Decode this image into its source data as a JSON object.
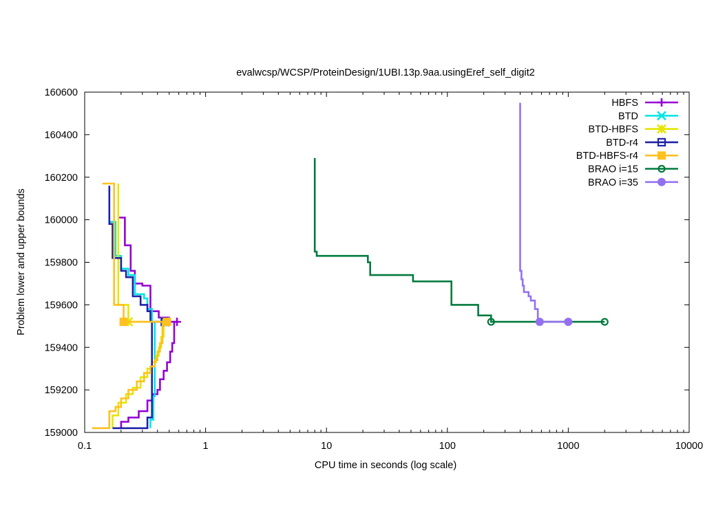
{
  "chart_data": {
    "type": "line",
    "title": "evalwcsp/WCSP/ProteinDesign/1UBI.13p.9aa.usingEref_self_digit2",
    "xlabel": "CPU time in seconds (log scale)",
    "ylabel": "Problem lower and upper bounds",
    "x_scale": "log",
    "xlim": [
      0.1,
      10000
    ],
    "ylim": [
      159000,
      160600
    ],
    "grid": false,
    "legend_position": "top-right",
    "x_ticks": [
      {
        "value": 0.1,
        "label": "0.1"
      },
      {
        "value": 1,
        "label": "1"
      },
      {
        "value": 10,
        "label": "10"
      },
      {
        "value": 100,
        "label": "100"
      },
      {
        "value": 1000,
        "label": "1000"
      },
      {
        "value": 10000,
        "label": "10000"
      }
    ],
    "y_ticks": [
      {
        "value": 159000,
        "label": "159000"
      },
      {
        "value": 159200,
        "label": "159200"
      },
      {
        "value": 159400,
        "label": "159400"
      },
      {
        "value": 159600,
        "label": "159600"
      },
      {
        "value": 159800,
        "label": "159800"
      },
      {
        "value": 160000,
        "label": "160000"
      },
      {
        "value": 160200,
        "label": "160200"
      },
      {
        "value": 160400,
        "label": "160400"
      },
      {
        "value": 160600,
        "label": "160600"
      }
    ],
    "series": [
      {
        "name": "HBFS",
        "color": "#9400d3",
        "marker": "plus",
        "upper": [
          [
            0.19,
            160010
          ],
          [
            0.215,
            160010
          ],
          [
            0.215,
            159880
          ],
          [
            0.24,
            159880
          ],
          [
            0.24,
            159760
          ],
          [
            0.26,
            159760
          ],
          [
            0.26,
            159700
          ],
          [
            0.3,
            159700
          ],
          [
            0.3,
            159690
          ],
          [
            0.35,
            159690
          ],
          [
            0.35,
            159570
          ],
          [
            0.41,
            159570
          ],
          [
            0.41,
            159540
          ],
          [
            0.5,
            159540
          ],
          [
            0.5,
            159520
          ],
          [
            0.58,
            159520
          ]
        ],
        "lower": [
          [
            0.2,
            159020
          ],
          [
            0.2,
            159050
          ],
          [
            0.23,
            159050
          ],
          [
            0.23,
            159070
          ],
          [
            0.28,
            159070
          ],
          [
            0.28,
            159100
          ],
          [
            0.33,
            159100
          ],
          [
            0.33,
            159150
          ],
          [
            0.37,
            159150
          ],
          [
            0.37,
            159180
          ],
          [
            0.4,
            159180
          ],
          [
            0.4,
            159200
          ],
          [
            0.42,
            159200
          ],
          [
            0.42,
            159250
          ],
          [
            0.45,
            159250
          ],
          [
            0.45,
            159290
          ],
          [
            0.48,
            159290
          ],
          [
            0.48,
            159330
          ],
          [
            0.51,
            159330
          ],
          [
            0.51,
            159380
          ],
          [
            0.53,
            159380
          ],
          [
            0.53,
            159420
          ],
          [
            0.55,
            159420
          ],
          [
            0.55,
            159520
          ]
        ],
        "marks": [
          [
            0.58,
            159520
          ]
        ]
      },
      {
        "name": "BTD",
        "color": "#00e5e5",
        "marker": "cross",
        "upper": [
          [
            0.16,
            160150
          ],
          [
            0.16,
            159990
          ],
          [
            0.18,
            159990
          ],
          [
            0.18,
            159830
          ],
          [
            0.2,
            159830
          ],
          [
            0.2,
            159770
          ],
          [
            0.23,
            159770
          ],
          [
            0.23,
            159740
          ],
          [
            0.26,
            159740
          ],
          [
            0.26,
            159650
          ],
          [
            0.31,
            159650
          ],
          [
            0.31,
            159630
          ],
          [
            0.33,
            159630
          ],
          [
            0.33,
            159580
          ],
          [
            0.36,
            159580
          ],
          [
            0.36,
            159520
          ],
          [
            0.46,
            159520
          ]
        ],
        "lower": [
          [
            0.35,
            159020
          ],
          [
            0.35,
            159060
          ],
          [
            0.37,
            159060
          ],
          [
            0.37,
            159170
          ],
          [
            0.38,
            159170
          ],
          [
            0.38,
            159520
          ]
        ],
        "marks": [
          [
            0.46,
            159520
          ]
        ]
      },
      {
        "name": "BTD-HBFS",
        "color": "#e5e500",
        "marker": "star",
        "upper": [
          [
            0.19,
            160170
          ],
          [
            0.19,
            159600
          ],
          [
            0.23,
            159600
          ],
          [
            0.23,
            159520
          ],
          [
            0.47,
            159520
          ]
        ],
        "lower": [
          [
            0.17,
            159020
          ],
          [
            0.17,
            159080
          ],
          [
            0.19,
            159080
          ],
          [
            0.19,
            159140
          ],
          [
            0.22,
            159140
          ],
          [
            0.22,
            159180
          ],
          [
            0.25,
            159180
          ],
          [
            0.25,
            159210
          ],
          [
            0.29,
            159210
          ],
          [
            0.29,
            159260
          ],
          [
            0.33,
            159260
          ],
          [
            0.33,
            159300
          ],
          [
            0.36,
            159300
          ],
          [
            0.36,
            159330
          ],
          [
            0.39,
            159330
          ],
          [
            0.39,
            159360
          ],
          [
            0.41,
            159360
          ],
          [
            0.41,
            159400
          ],
          [
            0.43,
            159400
          ],
          [
            0.43,
            159450
          ],
          [
            0.45,
            159450
          ],
          [
            0.45,
            159520
          ]
        ],
        "marks": [
          [
            0.23,
            159520
          ],
          [
            0.47,
            159520
          ]
        ]
      },
      {
        "name": "BTD-r4",
        "color": "#1e22a8",
        "marker": "square-open",
        "upper": [
          [
            0.16,
            160160
          ],
          [
            0.16,
            159980
          ],
          [
            0.17,
            159980
          ],
          [
            0.17,
            159820
          ],
          [
            0.2,
            159820
          ],
          [
            0.2,
            159760
          ],
          [
            0.22,
            159760
          ],
          [
            0.22,
            159730
          ],
          [
            0.25,
            159730
          ],
          [
            0.25,
            159640
          ],
          [
            0.29,
            159640
          ],
          [
            0.29,
            159600
          ],
          [
            0.33,
            159600
          ],
          [
            0.33,
            159570
          ],
          [
            0.35,
            159570
          ],
          [
            0.35,
            159520
          ],
          [
            0.46,
            159520
          ]
        ],
        "lower": [
          [
            0.17,
            159020
          ],
          [
            0.33,
            159020
          ],
          [
            0.33,
            159070
          ],
          [
            0.36,
            159070
          ],
          [
            0.36,
            159520
          ]
        ],
        "marks": [
          [
            0.46,
            159520
          ]
        ]
      },
      {
        "name": "BTD-HBFS-r4",
        "color": "#ffc020",
        "marker": "square-filled",
        "upper": [
          [
            0.14,
            160170
          ],
          [
            0.175,
            160170
          ],
          [
            0.175,
            159600
          ],
          [
            0.21,
            159600
          ],
          [
            0.21,
            159520
          ],
          [
            0.48,
            159520
          ]
        ],
        "lower": [
          [
            0.115,
            159020
          ],
          [
            0.16,
            159020
          ],
          [
            0.16,
            159100
          ],
          [
            0.18,
            159100
          ],
          [
            0.18,
            159120
          ],
          [
            0.2,
            159120
          ],
          [
            0.2,
            159160
          ],
          [
            0.23,
            159160
          ],
          [
            0.23,
            159200
          ],
          [
            0.27,
            159200
          ],
          [
            0.27,
            159240
          ],
          [
            0.31,
            159240
          ],
          [
            0.31,
            159280
          ],
          [
            0.35,
            159280
          ],
          [
            0.35,
            159310
          ],
          [
            0.38,
            159310
          ],
          [
            0.38,
            159340
          ],
          [
            0.4,
            159340
          ],
          [
            0.4,
            159380
          ],
          [
            0.42,
            159380
          ],
          [
            0.42,
            159420
          ],
          [
            0.44,
            159420
          ],
          [
            0.44,
            159520
          ]
        ],
        "marks": [
          [
            0.21,
            159520
          ],
          [
            0.48,
            159520
          ]
        ]
      },
      {
        "name": "BRAO i=15",
        "color": "#007a3d",
        "marker": "circle-open",
        "upper": [
          [
            8,
            160290
          ],
          [
            8,
            159850
          ],
          [
            8.3,
            159850
          ],
          [
            8.3,
            159830
          ],
          [
            22,
            159830
          ],
          [
            22,
            159800
          ],
          [
            23,
            159800
          ],
          [
            23,
            159740
          ],
          [
            52,
            159740
          ],
          [
            52,
            159710
          ],
          [
            108,
            159710
          ],
          [
            108,
            159600
          ],
          [
            180,
            159600
          ],
          [
            180,
            159550
          ],
          [
            230,
            159550
          ],
          [
            230,
            159520
          ],
          [
            2000,
            159520
          ]
        ],
        "lower": [],
        "marks": [
          [
            230,
            159520
          ],
          [
            2000,
            159520
          ]
        ]
      },
      {
        "name": "BRAO i=35",
        "color": "#9370f0",
        "marker": "circle-filled",
        "upper": [
          [
            400,
            160550
          ],
          [
            400,
            159760
          ],
          [
            410,
            159760
          ],
          [
            410,
            159720
          ],
          [
            420,
            159720
          ],
          [
            420,
            159690
          ],
          [
            430,
            159690
          ],
          [
            430,
            159660
          ],
          [
            470,
            159660
          ],
          [
            470,
            159640
          ],
          [
            490,
            159640
          ],
          [
            490,
            159620
          ],
          [
            530,
            159620
          ],
          [
            530,
            159580
          ],
          [
            560,
            159580
          ],
          [
            560,
            159520
          ],
          [
            1000,
            159520
          ]
        ],
        "lower": [],
        "marks": [
          [
            580,
            159520
          ],
          [
            1000,
            159520
          ]
        ]
      }
    ]
  }
}
